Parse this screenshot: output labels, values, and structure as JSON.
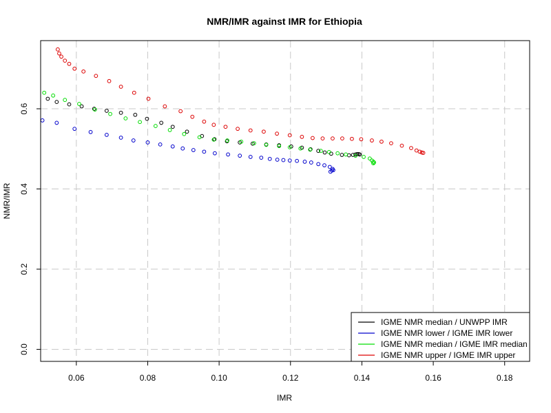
{
  "chart_data": {
    "type": "scatter",
    "title": "NMR/IMR against IMR for Ethiopia",
    "xlabel": "IMR",
    "ylabel": "NMR/IMR",
    "xlim": [
      0.05,
      0.187
    ],
    "ylim": [
      -0.03,
      0.77
    ],
    "xticks": [
      0.06,
      0.08,
      0.1,
      0.12,
      0.14,
      0.16,
      0.18
    ],
    "xtick_labels": [
      "0.06",
      "0.08",
      "0.10",
      "0.12",
      "0.14",
      "0.16",
      "0.18"
    ],
    "yticks": [
      0.0,
      0.2,
      0.4,
      0.6
    ],
    "ytick_labels": [
      "0.0",
      "0.2",
      "0.4",
      "0.6"
    ],
    "grid": true,
    "legend_position": "bottom-right",
    "series": [
      {
        "name": "IGME NMR median / UNWPP IMR",
        "color": "#000000",
        "points": [
          [
            0.052,
            0.625
          ],
          [
            0.0545,
            0.617
          ],
          [
            0.058,
            0.611
          ],
          [
            0.0615,
            0.606
          ],
          [
            0.065,
            0.6
          ],
          [
            0.0685,
            0.595
          ],
          [
            0.0725,
            0.59
          ],
          [
            0.0765,
            0.585
          ],
          [
            0.0798,
            0.575
          ],
          [
            0.0838,
            0.565
          ],
          [
            0.087,
            0.555
          ],
          [
            0.091,
            0.543
          ],
          [
            0.0952,
            0.532
          ],
          [
            0.0987,
            0.524
          ],
          [
            0.1022,
            0.519
          ],
          [
            0.1058,
            0.516
          ],
          [
            0.1094,
            0.513
          ],
          [
            0.1132,
            0.511
          ],
          [
            0.1168,
            0.509
          ],
          [
            0.1202,
            0.506
          ],
          [
            0.1232,
            0.503
          ],
          [
            0.1256,
            0.499
          ],
          [
            0.1278,
            0.495
          ],
          [
            0.1296,
            0.491
          ],
          [
            0.1314,
            0.488
          ],
          [
            0.1344,
            0.485
          ],
          [
            0.1364,
            0.484
          ],
          [
            0.1375,
            0.485
          ],
          [
            0.1382,
            0.486
          ],
          [
            0.1387,
            0.487
          ],
          [
            0.1391,
            0.487
          ],
          [
            0.1394,
            0.486
          ]
        ]
      },
      {
        "name": "IGME NMR lower / IGME IMR lower",
        "color": "#0000cc",
        "points": [
          [
            0.0505,
            0.571
          ],
          [
            0.0545,
            0.565
          ],
          [
            0.0595,
            0.55
          ],
          [
            0.064,
            0.542
          ],
          [
            0.0685,
            0.535
          ],
          [
            0.0725,
            0.528
          ],
          [
            0.076,
            0.521
          ],
          [
            0.08,
            0.516
          ],
          [
            0.0835,
            0.511
          ],
          [
            0.087,
            0.506
          ],
          [
            0.0898,
            0.501
          ],
          [
            0.0928,
            0.497
          ],
          [
            0.0958,
            0.493
          ],
          [
            0.0988,
            0.489
          ],
          [
            0.1025,
            0.486
          ],
          [
            0.1058,
            0.483
          ],
          [
            0.1088,
            0.48
          ],
          [
            0.1118,
            0.478
          ],
          [
            0.1142,
            0.475
          ],
          [
            0.1163,
            0.473
          ],
          [
            0.118,
            0.472
          ],
          [
            0.1198,
            0.471
          ],
          [
            0.1218,
            0.47
          ],
          [
            0.124,
            0.468
          ],
          [
            0.1258,
            0.466
          ],
          [
            0.1278,
            0.462
          ],
          [
            0.1295,
            0.459
          ],
          [
            0.131,
            0.455
          ],
          [
            0.1318,
            0.45
          ],
          [
            0.1316,
            0.446
          ],
          [
            0.1312,
            0.443
          ],
          [
            0.132,
            0.447
          ]
        ]
      },
      {
        "name": "IGME NMR median / IGME IMR median",
        "color": "#00dd00",
        "points": [
          [
            0.051,
            0.64
          ],
          [
            0.0535,
            0.633
          ],
          [
            0.0568,
            0.622
          ],
          [
            0.0608,
            0.612
          ],
          [
            0.0652,
            0.598
          ],
          [
            0.0695,
            0.587
          ],
          [
            0.0738,
            0.576
          ],
          [
            0.0778,
            0.567
          ],
          [
            0.0822,
            0.557
          ],
          [
            0.0862,
            0.547
          ],
          [
            0.0902,
            0.537
          ],
          [
            0.0945,
            0.529
          ],
          [
            0.0985,
            0.523
          ],
          [
            0.1023,
            0.521
          ],
          [
            0.1062,
            0.518
          ],
          [
            0.1098,
            0.514
          ],
          [
            0.1132,
            0.51
          ],
          [
            0.1168,
            0.507
          ],
          [
            0.1198,
            0.504
          ],
          [
            0.1228,
            0.501
          ],
          [
            0.1255,
            0.498
          ],
          [
            0.1285,
            0.495
          ],
          [
            0.1308,
            0.492
          ],
          [
            0.1332,
            0.489
          ],
          [
            0.1355,
            0.486
          ],
          [
            0.1382,
            0.483
          ],
          [
            0.1405,
            0.48
          ],
          [
            0.1422,
            0.476
          ],
          [
            0.1428,
            0.471
          ],
          [
            0.1432,
            0.468
          ],
          [
            0.1434,
            0.466
          ],
          [
            0.1432,
            0.464
          ]
        ]
      },
      {
        "name": "IGME NMR upper / IGME IMR upper",
        "color": "#dd0000",
        "points": [
          [
            0.0548,
            0.748
          ],
          [
            0.0552,
            0.738
          ],
          [
            0.0558,
            0.73
          ],
          [
            0.0568,
            0.72
          ],
          [
            0.058,
            0.712
          ],
          [
            0.0595,
            0.7
          ],
          [
            0.062,
            0.693
          ],
          [
            0.0655,
            0.682
          ],
          [
            0.0692,
            0.669
          ],
          [
            0.0725,
            0.655
          ],
          [
            0.0762,
            0.64
          ],
          [
            0.0802,
            0.625
          ],
          [
            0.0848,
            0.606
          ],
          [
            0.0892,
            0.594
          ],
          [
            0.0925,
            0.58
          ],
          [
            0.0958,
            0.568
          ],
          [
            0.0985,
            0.56
          ],
          [
            0.1018,
            0.555
          ],
          [
            0.1052,
            0.55
          ],
          [
            0.1088,
            0.546
          ],
          [
            0.1125,
            0.543
          ],
          [
            0.1162,
            0.538
          ],
          [
            0.1198,
            0.534
          ],
          [
            0.1232,
            0.53
          ],
          [
            0.1262,
            0.527
          ],
          [
            0.129,
            0.526
          ],
          [
            0.1318,
            0.526
          ],
          [
            0.1345,
            0.526
          ],
          [
            0.1372,
            0.525
          ],
          [
            0.1398,
            0.524
          ],
          [
            0.1428,
            0.521
          ],
          [
            0.1455,
            0.518
          ],
          [
            0.1482,
            0.514
          ],
          [
            0.1512,
            0.508
          ],
          [
            0.1538,
            0.502
          ],
          [
            0.1553,
            0.496
          ],
          [
            0.1562,
            0.493
          ],
          [
            0.1568,
            0.491
          ],
          [
            0.1572,
            0.49
          ]
        ]
      }
    ]
  }
}
